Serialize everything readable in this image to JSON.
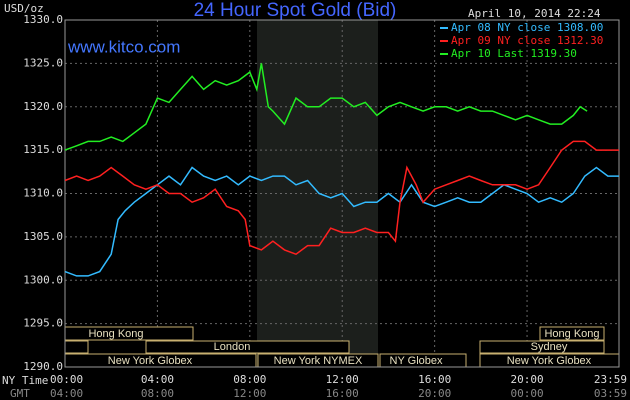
{
  "chart_data": {
    "type": "line",
    "title": "24 Hour Spot Gold (Bid)",
    "site": "www.kitco.com",
    "y_label": "USD/oz",
    "timestamp": "April 10, 2014 22:24",
    "x_row_labels": [
      "NY Time",
      "GMT"
    ],
    "x": [],
    "series": [
      {
        "name": "Apr 08 NY close 1308.00",
        "color": "#33bbff",
        "x": [
          0,
          0.5,
          1,
          1.5,
          2,
          2.3,
          2.6,
          3,
          3.5,
          4,
          4.5,
          5,
          5.5,
          6,
          6.5,
          7,
          7.5,
          8,
          8.5,
          9,
          9.5,
          10,
          10.5,
          11,
          11.5,
          12,
          12.5,
          13,
          13.5,
          14,
          14.5,
          15,
          15.5,
          16,
          16.5,
          17,
          17.5,
          18,
          18.5,
          19,
          19.5,
          20,
          20.5,
          21,
          21.5,
          22,
          22.5,
          23,
          23.5,
          23.98
        ],
        "values": [
          1301,
          1300.5,
          1300.5,
          1301,
          1303,
          1307,
          1308,
          1309,
          1310,
          1311,
          1312,
          1311,
          1313,
          1312,
          1311.5,
          1312,
          1311,
          1312,
          1311.5,
          1312,
          1312,
          1311,
          1311.5,
          1310,
          1309.5,
          1310,
          1308.5,
          1309,
          1309,
          1310,
          1309,
          1311,
          1309,
          1308.5,
          1309,
          1309.5,
          1309,
          1309,
          1310,
          1311,
          1310.5,
          1310,
          1309,
          1309.5,
          1309,
          1310,
          1312,
          1313,
          1312,
          1312
        ]
      },
      {
        "name": "Apr 09 NY close 1312.30",
        "color": "#ff2020",
        "x": [
          0,
          0.5,
          1,
          1.5,
          2,
          2.5,
          3,
          3.5,
          4,
          4.5,
          5,
          5.5,
          6,
          6.5,
          7,
          7.5,
          7.8,
          8,
          8.5,
          9,
          9.5,
          10,
          10.5,
          11,
          11.5,
          12,
          12.5,
          13,
          13.5,
          14,
          14.3,
          14.5,
          14.8,
          15.2,
          15.5,
          16,
          16.5,
          17,
          17.5,
          18,
          18.5,
          19,
          19.5,
          20,
          20.5,
          21,
          21.5,
          22,
          22.5,
          23,
          23.5,
          23.98
        ],
        "values": [
          1311.5,
          1312,
          1311.5,
          1312,
          1313,
          1312,
          1311,
          1310.5,
          1311,
          1310,
          1310,
          1309,
          1309.5,
          1310.5,
          1308.5,
          1308,
          1307,
          1304,
          1303.5,
          1304.5,
          1303.5,
          1303,
          1304,
          1304,
          1306,
          1305.5,
          1305.5,
          1306,
          1305.5,
          1305.5,
          1304.5,
          1309,
          1313,
          1311,
          1309,
          1310.5,
          1311,
          1311.5,
          1312,
          1311.5,
          1311,
          1311,
          1311,
          1310.5,
          1311,
          1313,
          1315,
          1316,
          1316,
          1315,
          1315,
          1315
        ]
      },
      {
        "name": "Apr 10 Last 1319.30",
        "color": "#22ee22",
        "x": [
          0,
          0.5,
          1,
          1.5,
          2,
          2.5,
          3,
          3.5,
          4,
          4.5,
          5,
          5.5,
          6,
          6.5,
          7,
          7.5,
          8,
          8.3,
          8.5,
          8.8,
          9,
          9.5,
          10,
          10.5,
          11,
          11.5,
          12,
          12.5,
          13,
          13.5,
          14,
          14.5,
          15,
          15.5,
          16,
          16.5,
          17,
          17.5,
          18,
          18.5,
          19,
          19.5,
          20,
          20.5,
          21,
          21.5,
          22,
          22.3,
          22.6
        ],
        "values": [
          1315,
          1315.5,
          1316,
          1316,
          1316.5,
          1316,
          1317,
          1318,
          1321,
          1320.5,
          1322,
          1323.5,
          1322,
          1323,
          1322.5,
          1323,
          1324,
          1322,
          1325,
          1320,
          1319.5,
          1318,
          1321,
          1320,
          1320,
          1321,
          1321,
          1320,
          1320.5,
          1319,
          1320,
          1320.5,
          1320,
          1319.5,
          1320,
          1320,
          1319.5,
          1320,
          1319.5,
          1319.5,
          1319,
          1318.5,
          1319,
          1318.5,
          1318,
          1318,
          1319,
          1320,
          1319.5
        ]
      }
    ],
    "xlim": [
      0,
      23.98
    ],
    "xticks": [
      {
        "value": 0,
        "label": "00:00"
      },
      {
        "value": 4,
        "label": "04:00"
      },
      {
        "value": 8,
        "label": "08:00"
      },
      {
        "value": 12,
        "label": "12:00"
      },
      {
        "value": 16,
        "label": "16:00"
      },
      {
        "value": 20,
        "label": "20:00"
      },
      {
        "value": 23.98,
        "label": "23:59"
      }
    ],
    "xticks_gmt": [
      "04:00",
      "08:00",
      "12:00",
      "16:00",
      "20:00",
      "00:00",
      "03:59"
    ],
    "ylim": [
      1290,
      1330
    ],
    "yticks": [
      {
        "value": 1290,
        "label": "1290.0"
      },
      {
        "value": 1295,
        "label": "1295.0"
      },
      {
        "value": 1300,
        "label": "1300.0"
      },
      {
        "value": 1305,
        "label": "1305.0"
      },
      {
        "value": 1310,
        "label": "1310.0"
      },
      {
        "value": 1315,
        "label": "1315.0"
      },
      {
        "value": 1320,
        "label": "1320.0"
      },
      {
        "value": 1325,
        "label": "1325.0"
      },
      {
        "value": 1330,
        "label": "1330.0"
      }
    ],
    "grid": true,
    "sessions": [
      "Hong Kong",
      "London",
      "New York Globex",
      "New York NYMEX",
      "NY Globex",
      "Sydney",
      "Hong Kong",
      "New York Globex"
    ]
  }
}
